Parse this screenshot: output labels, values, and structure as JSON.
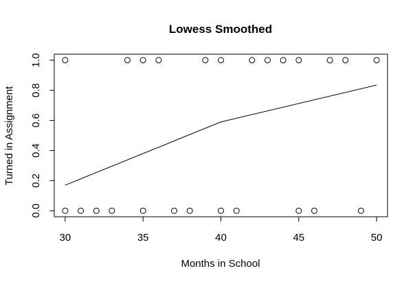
{
  "chart_data": {
    "type": "scatter",
    "title": "Lowess Smoothed",
    "xlabel": "Months in School",
    "ylabel": "Turned in Assignment",
    "xlim": [
      29.3,
      50.7
    ],
    "ylim": [
      -0.04,
      1.04
    ],
    "xticks": [
      30,
      35,
      40,
      45,
      50
    ],
    "xtick_labels": [
      "30",
      "35",
      "40",
      "45",
      "50"
    ],
    "yticks": [
      0.0,
      0.2,
      0.4,
      0.6,
      0.8,
      1.0
    ],
    "ytick_labels": [
      "0.0",
      "0.2",
      "0.4",
      "0.6",
      "0.8",
      "1.0"
    ],
    "grid": false,
    "series": [
      {
        "type": "scatter",
        "marker": "open-circle",
        "x": [
          30,
          34,
          35,
          36,
          39,
          40,
          42,
          43,
          44,
          45,
          47,
          48,
          50,
          30,
          31,
          32,
          33,
          35,
          37,
          38,
          40,
          41,
          45,
          46,
          49
        ],
        "y": [
          1,
          1,
          1,
          1,
          1,
          1,
          1,
          1,
          1,
          1,
          1,
          1,
          1,
          0,
          0,
          0,
          0,
          0,
          0,
          0,
          0,
          0,
          0,
          0,
          0
        ]
      },
      {
        "type": "line",
        "x": [
          30,
          40,
          50
        ],
        "y": [
          0.17,
          0.59,
          0.835
        ]
      }
    ],
    "colors": {
      "points": "#000000",
      "line": "#000000",
      "axes": "#000000"
    }
  }
}
